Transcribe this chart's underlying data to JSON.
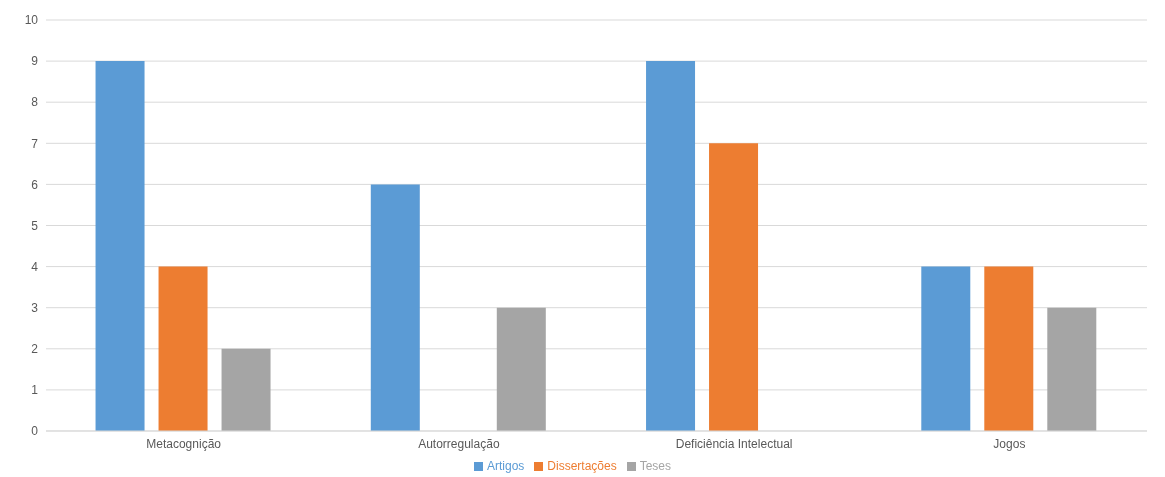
{
  "chart_data": {
    "type": "bar",
    "categories": [
      "Metacognição",
      "Autorregulação",
      "Deficiência Intelectual",
      "Jogos"
    ],
    "series": [
      {
        "name": "Artigos",
        "color": "#5b9bd5",
        "values": [
          9,
          6,
          9,
          4
        ]
      },
      {
        "name": "Dissertações",
        "color": "#ed7d31",
        "values": [
          4,
          0,
          7,
          4
        ]
      },
      {
        "name": "Teses",
        "color": "#a5a5a5",
        "values": [
          2,
          3,
          0,
          3
        ]
      }
    ],
    "ylim": [
      0,
      10
    ],
    "yticks": [
      0,
      1,
      2,
      3,
      4,
      5,
      6,
      7,
      8,
      9,
      10
    ],
    "grid": "y",
    "legend": "bottom"
  }
}
